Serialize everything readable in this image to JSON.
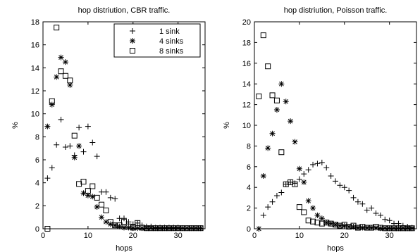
{
  "chart_data": [
    {
      "type": "scatter",
      "title": "hop distriution, CBR traffic.",
      "xlabel": "hops",
      "ylabel": "%",
      "xlim": [
        0,
        36
      ],
      "ylim": [
        0,
        18
      ],
      "xticks": [
        0,
        10,
        20,
        30
      ],
      "yticks": [
        0,
        2,
        4,
        6,
        8,
        10,
        12,
        14,
        16,
        18
      ],
      "legend": {
        "position": "top-right"
      },
      "series": [
        {
          "name": "1 sink",
          "marker": "plus",
          "points": [
            [
              1,
              4.4
            ],
            [
              2,
              5.3
            ],
            [
              3,
              7.3
            ],
            [
              4,
              9.5
            ],
            [
              5,
              7.1
            ],
            [
              6,
              7.2
            ],
            [
              7,
              6.4
            ],
            [
              8,
              8.8
            ],
            [
              9,
              6.7
            ],
            [
              10,
              8.9
            ],
            [
              11,
              7.5
            ],
            [
              12,
              6.3
            ],
            [
              13,
              3.2
            ],
            [
              14,
              3.2
            ],
            [
              15,
              2.7
            ],
            [
              16,
              2.6
            ],
            [
              17,
              0.9
            ],
            [
              18,
              0.9
            ],
            [
              19,
              0.6
            ],
            [
              20,
              0.4
            ],
            [
              21,
              0.5
            ],
            [
              22,
              0.3
            ],
            [
              23,
              0.2
            ],
            [
              24,
              0.2
            ],
            [
              25,
              0.1
            ],
            [
              26,
              0.1
            ],
            [
              27,
              0.1
            ],
            [
              28,
              0.1
            ],
            [
              29,
              0.1
            ],
            [
              30,
              0.1
            ],
            [
              31,
              0.05
            ],
            [
              32,
              0.05
            ],
            [
              33,
              0.05
            ],
            [
              34,
              0.05
            ],
            [
              35,
              0.05
            ]
          ]
        },
        {
          "name": "4 sinks",
          "marker": "asterisk",
          "points": [
            [
              1,
              8.9
            ],
            [
              2,
              10.8
            ],
            [
              3,
              13.2
            ],
            [
              4,
              14.9
            ],
            [
              5,
              14.5
            ],
            [
              6,
              12.5
            ],
            [
              7,
              6.2
            ],
            [
              8,
              7.2
            ],
            [
              9,
              3.1
            ],
            [
              10,
              2.9
            ],
            [
              11,
              2.8
            ],
            [
              12,
              1.9
            ],
            [
              13,
              1.0
            ],
            [
              14,
              0.6
            ],
            [
              15,
              0.4
            ],
            [
              16,
              0.3
            ],
            [
              17,
              0.2
            ],
            [
              18,
              0.1
            ],
            [
              19,
              0.1
            ],
            [
              20,
              0.05
            ],
            [
              21,
              0.05
            ],
            [
              22,
              0.05
            ],
            [
              23,
              0.05
            ],
            [
              24,
              0.05
            ],
            [
              25,
              0.05
            ],
            [
              26,
              0.05
            ],
            [
              27,
              0.05
            ],
            [
              28,
              0.05
            ],
            [
              29,
              0.05
            ],
            [
              30,
              0.05
            ],
            [
              31,
              0.05
            ],
            [
              32,
              0.05
            ],
            [
              33,
              0.05
            ],
            [
              34,
              0.05
            ],
            [
              35,
              0.05
            ]
          ]
        },
        {
          "name": "8 sinks",
          "marker": "square",
          "points": [
            [
              1,
              0
            ],
            [
              2,
              11.1
            ],
            [
              3,
              17.5
            ],
            [
              4,
              13.7
            ],
            [
              5,
              13.3
            ],
            [
              6,
              12.9
            ],
            [
              7,
              8.1
            ],
            [
              8,
              3.9
            ],
            [
              9,
              4.1
            ],
            [
              10,
              3.3
            ],
            [
              11,
              3.7
            ],
            [
              12,
              2.7
            ],
            [
              13,
              2.1
            ],
            [
              14,
              1.6
            ],
            [
              15,
              0.6
            ],
            [
              16,
              0.3
            ],
            [
              17,
              0.3
            ],
            [
              18,
              0.6
            ],
            [
              19,
              0.2
            ],
            [
              20,
              0.1
            ],
            [
              21,
              0.5
            ],
            [
              22,
              0.1
            ],
            [
              23,
              0.05
            ],
            [
              24,
              0.05
            ],
            [
              25,
              0.05
            ],
            [
              26,
              0.05
            ],
            [
              27,
              0.05
            ],
            [
              28,
              0.05
            ],
            [
              29,
              0.05
            ],
            [
              30,
              0.05
            ],
            [
              31,
              0.05
            ],
            [
              32,
              0.05
            ],
            [
              33,
              0.05
            ],
            [
              34,
              0.05
            ],
            [
              35,
              0.05
            ]
          ]
        }
      ]
    },
    {
      "type": "scatter",
      "title": "hop distriution, Poisson traffic.",
      "xlabel": "hops",
      "ylabel": "%",
      "xlim": [
        0,
        36
      ],
      "ylim": [
        0,
        20
      ],
      "xticks": [
        0,
        10,
        20,
        30
      ],
      "yticks": [
        0,
        2,
        4,
        6,
        8,
        10,
        12,
        14,
        16,
        18,
        20
      ],
      "series": [
        {
          "name": "1 sink",
          "marker": "plus",
          "points": [
            [
              1,
              0
            ],
            [
              2,
              1.3
            ],
            [
              3,
              2.1
            ],
            [
              4,
              2.6
            ],
            [
              5,
              3.2
            ],
            [
              6,
              3.5
            ],
            [
              7,
              4.3
            ],
            [
              8,
              4.5
            ],
            [
              9,
              4.4
            ],
            [
              10,
              4.8
            ],
            [
              11,
              5.3
            ],
            [
              12,
              5.7
            ],
            [
              13,
              6.2
            ],
            [
              14,
              6.3
            ],
            [
              15,
              6.4
            ],
            [
              16,
              5.9
            ],
            [
              17,
              5.1
            ],
            [
              18,
              4.6
            ],
            [
              19,
              4.2
            ],
            [
              20,
              4.0
            ],
            [
              21,
              3.7
            ],
            [
              22,
              3.0
            ],
            [
              23,
              2.6
            ],
            [
              24,
              2.4
            ],
            [
              25,
              1.8
            ],
            [
              26,
              2.0
            ],
            [
              27,
              1.5
            ],
            [
              28,
              1.3
            ],
            [
              29,
              0.9
            ],
            [
              30,
              0.8
            ],
            [
              31,
              0.5
            ],
            [
              32,
              0.5
            ],
            [
              33,
              0.3
            ],
            [
              34,
              0.2
            ],
            [
              35,
              0.1
            ]
          ]
        },
        {
          "name": "4 sinks",
          "marker": "asterisk",
          "points": [
            [
              1,
              0
            ],
            [
              2,
              5.1
            ],
            [
              3,
              7.8
            ],
            [
              4,
              9.2
            ],
            [
              5,
              11.5
            ],
            [
              6,
              14.0
            ],
            [
              7,
              12.3
            ],
            [
              8,
              10.4
            ],
            [
              9,
              8.4
            ],
            [
              10,
              5.8
            ],
            [
              11,
              4.5
            ],
            [
              12,
              2.7
            ],
            [
              13,
              2.0
            ],
            [
              14,
              1.3
            ],
            [
              15,
              1.0
            ],
            [
              16,
              0.6
            ],
            [
              17,
              0.5
            ],
            [
              18,
              0.4
            ],
            [
              19,
              0.3
            ],
            [
              20,
              0.3
            ],
            [
              21,
              0.2
            ],
            [
              22,
              0.2
            ],
            [
              23,
              0.1
            ],
            [
              24,
              0.1
            ],
            [
              25,
              0.1
            ],
            [
              26,
              0.1
            ],
            [
              27,
              0.1
            ],
            [
              28,
              0.05
            ],
            [
              29,
              0.05
            ],
            [
              30,
              0.05
            ],
            [
              31,
              0.05
            ],
            [
              32,
              0.05
            ],
            [
              33,
              0.05
            ],
            [
              34,
              0.05
            ],
            [
              35,
              0.05
            ]
          ]
        },
        {
          "name": "8 sinks",
          "marker": "square",
          "points": [
            [
              1,
              12.8
            ],
            [
              2,
              18.7
            ],
            [
              3,
              15.7
            ],
            [
              4,
              12.9
            ],
            [
              5,
              12.4
            ],
            [
              6,
              7.4
            ],
            [
              7,
              4.3
            ],
            [
              8,
              4.5
            ],
            [
              9,
              4.3
            ],
            [
              10,
              2.1
            ],
            [
              11,
              1.6
            ],
            [
              12,
              0.8
            ],
            [
              13,
              0.7
            ],
            [
              14,
              0.6
            ],
            [
              15,
              0.5
            ],
            [
              16,
              0.6
            ],
            [
              17,
              0.5
            ],
            [
              18,
              0.4
            ],
            [
              19,
              0.3
            ],
            [
              20,
              0.4
            ],
            [
              21,
              0.2
            ],
            [
              22,
              0.3
            ],
            [
              23,
              0.1
            ],
            [
              24,
              0.2
            ],
            [
              25,
              0.1
            ],
            [
              26,
              0.1
            ],
            [
              27,
              0.2
            ],
            [
              28,
              0.1
            ],
            [
              29,
              0.05
            ],
            [
              30,
              0.05
            ],
            [
              31,
              0.05
            ],
            [
              32,
              0.05
            ],
            [
              33,
              0.05
            ],
            [
              34,
              0.05
            ],
            [
              35,
              0.05
            ]
          ]
        }
      ]
    }
  ]
}
